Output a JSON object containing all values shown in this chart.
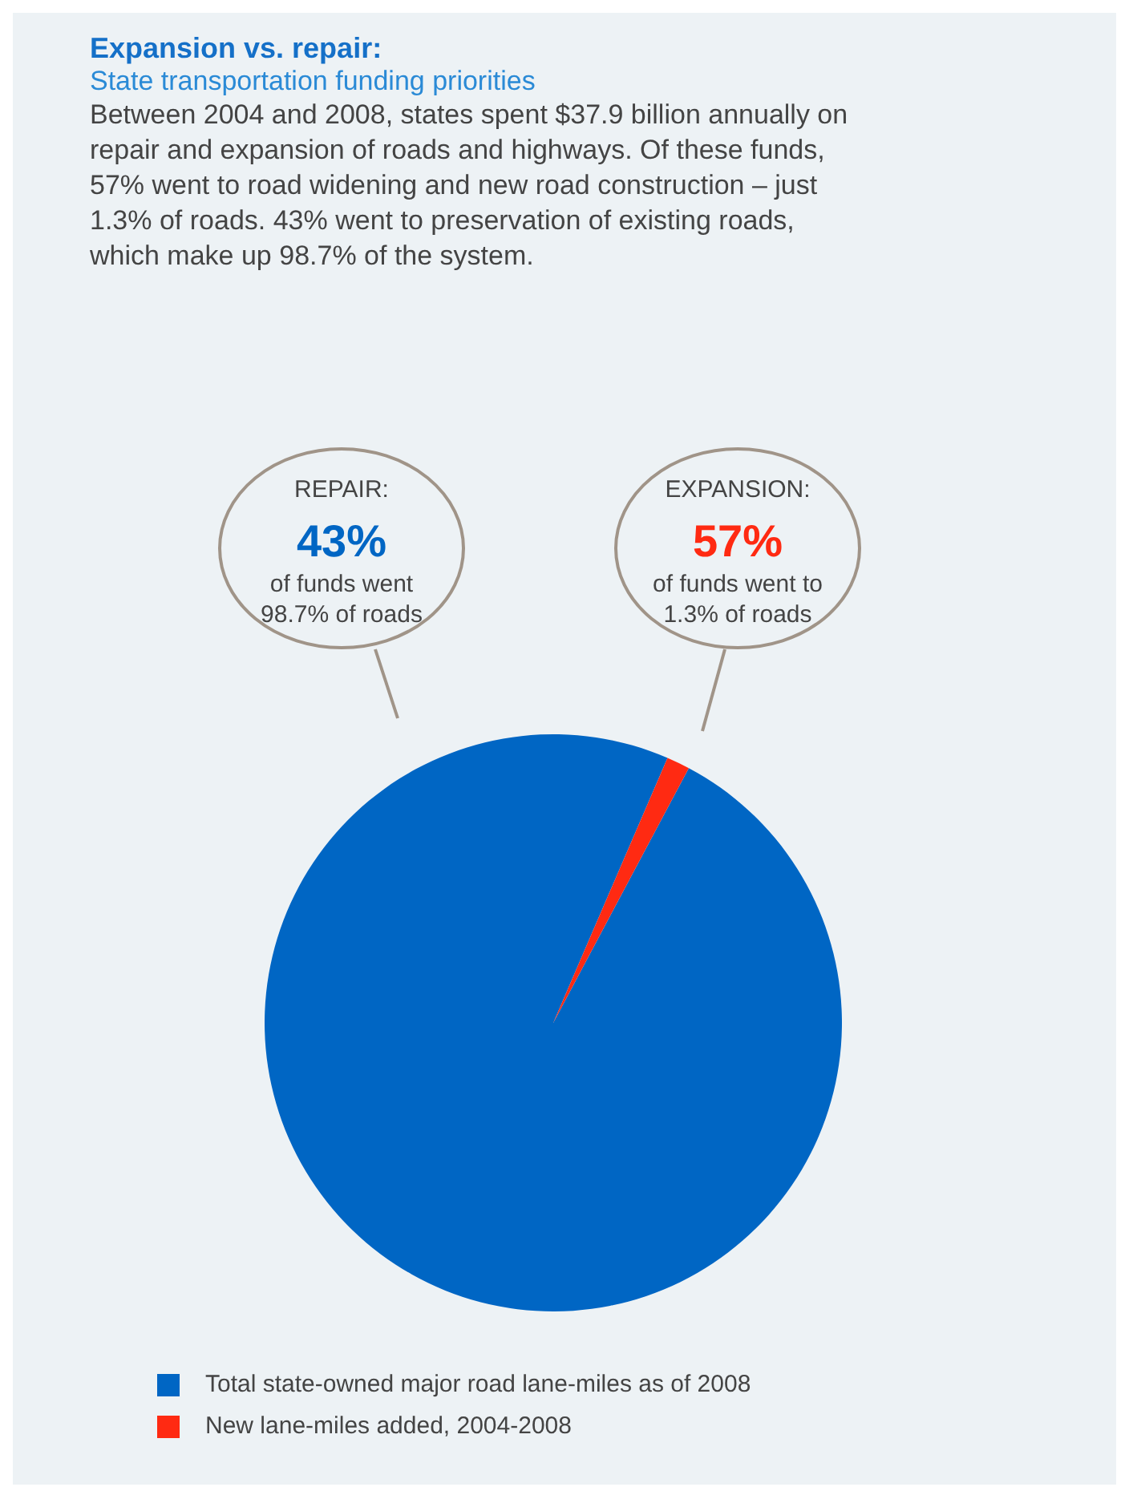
{
  "chart_data": {
    "type": "pie",
    "title": "Expansion vs. repair:",
    "subtitle": "State transportation funding priorities",
    "categories": [
      "Total state-owned major road lane-miles as of 2008",
      "New lane-miles added, 2004-2008"
    ],
    "values": [
      98.7,
      1.3
    ],
    "colors": [
      "#0066c4",
      "#ff2a12"
    ],
    "legend": "bottom",
    "annotations": [
      "Between 2004 and 2008, states spent $37.9 billion annually on repair and expansion of roads and highways. Of these funds, 57% went to road widening and new road construction – just 1.3% of roads. 43% went to preservation of existing roads, which make up 98.7% of the system.",
      "REPAIR:\n43%\nof funds went\n98.7% of roads",
      "EXPANSION:\n57%\nof funds went to\n1.3% of roads"
    ]
  }
}
